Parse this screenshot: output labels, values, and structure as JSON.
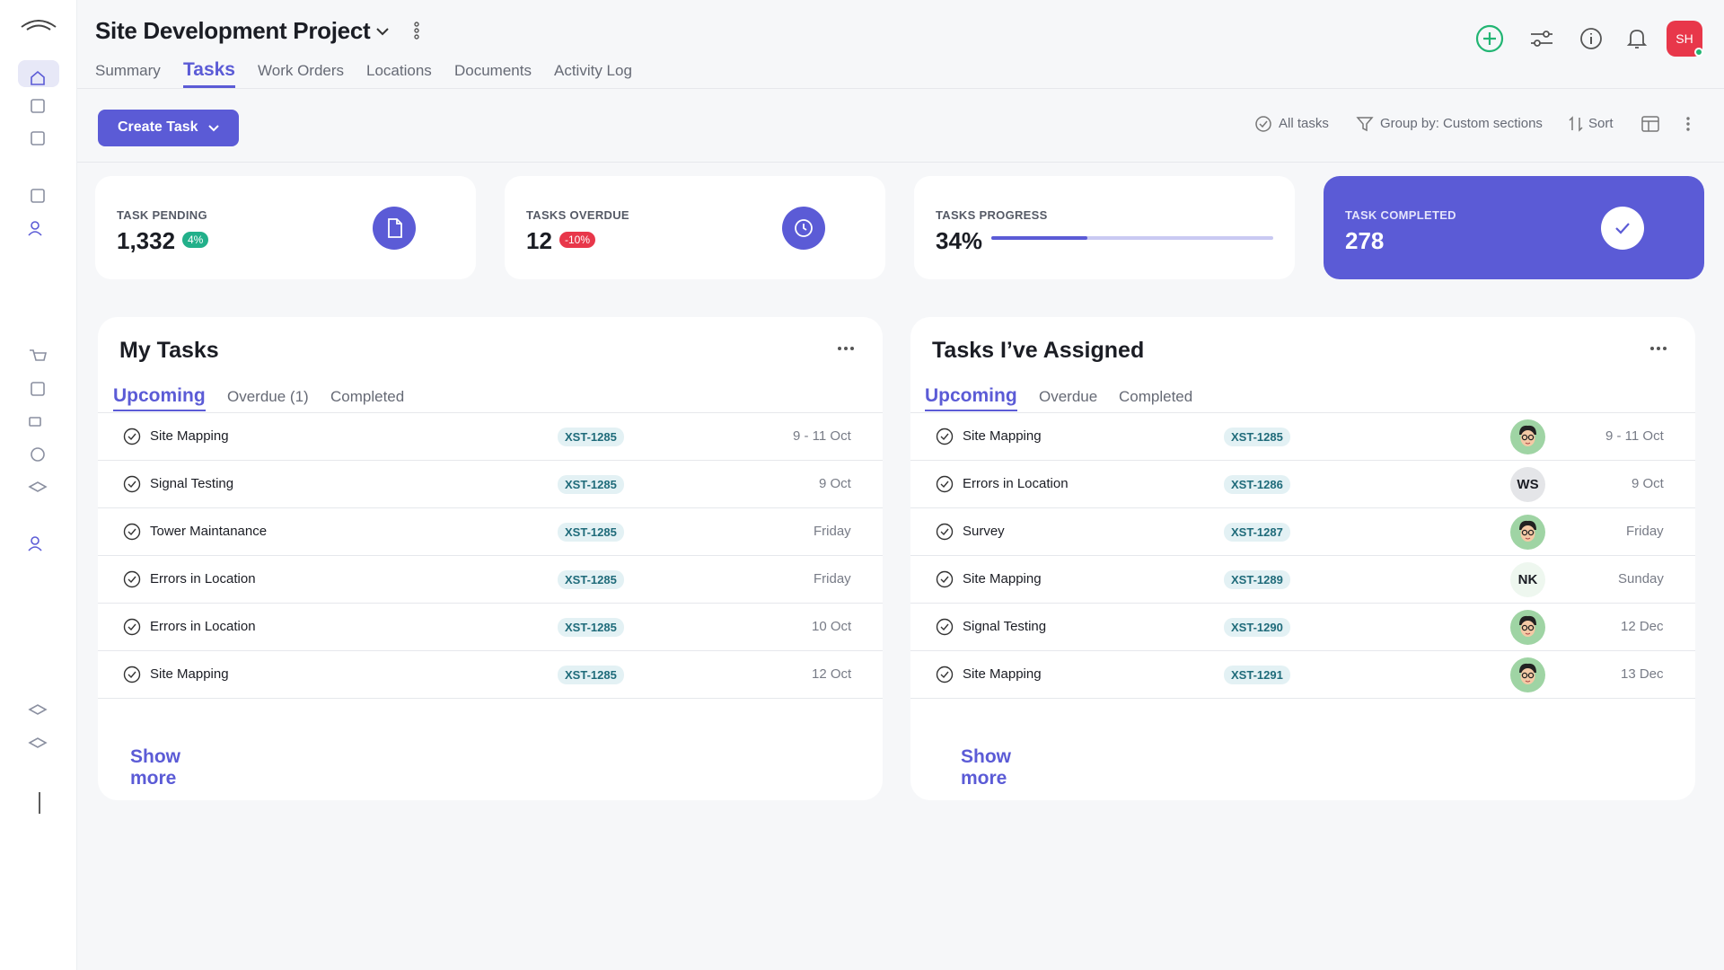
{
  "header": {
    "title": "Site Development Project",
    "tabs": [
      "Summary",
      "Tasks",
      "Work Orders",
      "Locations",
      "Documents",
      "Activity Log"
    ],
    "avatar": "SH"
  },
  "toolbar": {
    "create_button": "Create Task",
    "filters": [
      "All tasks",
      "Group by: Custom sections",
      "Sort"
    ]
  },
  "stats": [
    {
      "label": "TASK PENDING",
      "value": "1,332",
      "badge": "4%"
    },
    {
      "label": "TASKS OVERDUE",
      "value": "12",
      "badge": "-10%"
    },
    {
      "label": "TASKS PROGRESS",
      "value": "34%"
    },
    {
      "label": "TASK COMPLETED",
      "value": "278"
    }
  ],
  "panels": [
    {
      "title": "My Tasks",
      "tabs": [
        "Upcoming",
        "Overdue (1)",
        "Completed"
      ],
      "show_more": "Show more",
      "rows": [
        {
          "task": "Site Mapping",
          "code": "XST-1285",
          "date": "9 - 11 Oct"
        },
        {
          "task": "Signal Testing",
          "code": "XST-1285",
          "date": "9 Oct"
        },
        {
          "task": "Tower Maintanance",
          "code": "XST-1285",
          "date": "Friday"
        },
        {
          "task": "Errors in Location",
          "code": "XST-1285",
          "date": "Friday"
        },
        {
          "task": "Errors in Location",
          "code": "XST-1285",
          "date": "10 Oct"
        },
        {
          "task": "Site Mapping",
          "code": "XST-1285",
          "date": "12 Oct"
        }
      ]
    },
    {
      "title": "Tasks I’ve Assigned",
      "tabs": [
        "Upcoming",
        "Overdue",
        "Completed"
      ],
      "show_more": "Show more",
      "rows": [
        {
          "task": "Site Mapping",
          "code": "XST-1285",
          "date": "9 - 11 Oct",
          "assignee": null
        },
        {
          "task": "Errors in Location",
          "code": "XST-1286",
          "date": "9 Oct",
          "assignee": "WS"
        },
        {
          "task": "Survey",
          "code": "XST-1287",
          "date": "Friday",
          "assignee": null
        },
        {
          "task": "Site Mapping",
          "code": "XST-1289",
          "date": "Sunday",
          "assignee": "NK"
        },
        {
          "task": "Signal Testing",
          "code": "XST-1290",
          "date": "12 Dec",
          "assignee": null
        },
        {
          "task": "Site Mapping",
          "code": "XST-1291",
          "date": "13 Dec",
          "assignee": null
        }
      ]
    }
  ]
}
